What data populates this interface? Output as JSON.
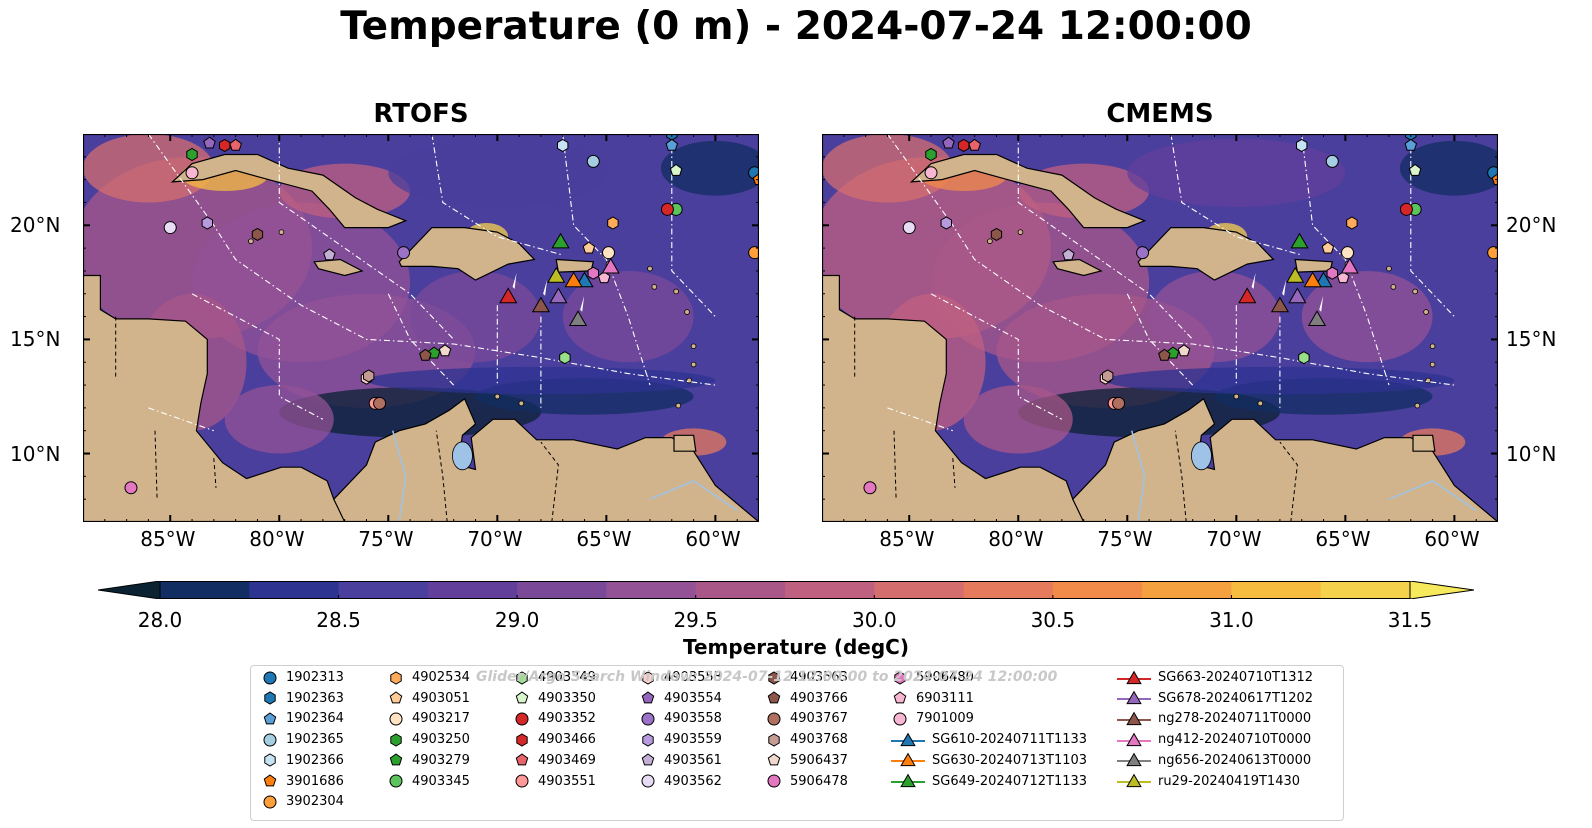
{
  "title": "Temperature (0 m) - 2024-07-24 12:00:00",
  "panels": [
    "RTOFS",
    "CMEMS"
  ],
  "map_extent": {
    "lon": [
      -89,
      -58
    ],
    "lat": [
      7,
      24
    ]
  },
  "lon_ticks": [
    "85°W",
    "80°W",
    "75°W",
    "70°W",
    "65°W",
    "60°W"
  ],
  "lat_ticks": [
    "20°N",
    "15°N",
    "10°N"
  ],
  "colorbar": {
    "label": "Temperature (degC)",
    "ticks": [
      "28.0",
      "28.5",
      "29.0",
      "29.5",
      "30.0",
      "30.5",
      "31.0",
      "31.5"
    ],
    "colors": [
      "#0b2233",
      "#112d62",
      "#2c3390",
      "#4a3f9c",
      "#613f9b",
      "#7a4a98",
      "#935196",
      "#a85788",
      "#c06080",
      "#d46e6e",
      "#e57a5c",
      "#f28a4a",
      "#f6a13f",
      "#f5bc40",
      "#f5d24c",
      "#f7e95c"
    ]
  },
  "legend": {
    "watermark": "Glider/Argo Search Window: 2024-07-12 12:00:00 to 2024-07-24 12:00:00",
    "columns": [
      [
        {
          "label": "1902313",
          "shape": "circle",
          "color": "#1f77b4"
        },
        {
          "label": "1902363",
          "shape": "hexagon",
          "color": "#1f77b4"
        },
        {
          "label": "1902364",
          "shape": "pentagon",
          "color": "#5aa0d8"
        },
        {
          "label": "1902365",
          "shape": "circle",
          "color": "#a6cee3"
        },
        {
          "label": "1902366",
          "shape": "hexagon",
          "color": "#c6e2f5"
        },
        {
          "label": "3901686",
          "shape": "pentagon",
          "color": "#ff7f0e"
        },
        {
          "label": "3902304",
          "shape": "circle",
          "color": "#ff9f3a"
        }
      ],
      [
        {
          "label": "4902534",
          "shape": "hexagon",
          "color": "#ffab5a"
        },
        {
          "label": "4903051",
          "shape": "pentagon",
          "color": "#ffcc99"
        },
        {
          "label": "4903217",
          "shape": "circle",
          "color": "#ffe3c2"
        },
        {
          "label": "4903250",
          "shape": "hexagon",
          "color": "#2ca02c"
        },
        {
          "label": "4903279",
          "shape": "pentagon",
          "color": "#2ca02c"
        },
        {
          "label": "4903345",
          "shape": "circle",
          "color": "#5cc45c"
        }
      ],
      [
        {
          "label": "4903349",
          "shape": "hexagon",
          "color": "#98df8a"
        },
        {
          "label": "4903350",
          "shape": "pentagon",
          "color": "#d8f5cc"
        },
        {
          "label": "4903352",
          "shape": "circle",
          "color": "#d62728"
        },
        {
          "label": "4903466",
          "shape": "hexagon",
          "color": "#d62728"
        },
        {
          "label": "4903469",
          "shape": "pentagon",
          "color": "#e8636a"
        },
        {
          "label": "4903551",
          "shape": "circle",
          "color": "#ff9896"
        }
      ],
      [
        {
          "label": "4903553",
          "shape": "hexagon",
          "color": "#ffd0cc"
        },
        {
          "label": "4903554",
          "shape": "pentagon",
          "color": "#9467bd"
        },
        {
          "label": "4903558",
          "shape": "circle",
          "color": "#9c72c8"
        },
        {
          "label": "4903559",
          "shape": "hexagon",
          "color": "#b99ade"
        },
        {
          "label": "4903561",
          "shape": "pentagon",
          "color": "#c5b0d5"
        },
        {
          "label": "4903562",
          "shape": "circle",
          "color": "#e8dcf5"
        }
      ],
      [
        {
          "label": "4903563",
          "shape": "hexagon",
          "color": "#8c564b"
        },
        {
          "label": "4903766",
          "shape": "pentagon",
          "color": "#8c564b"
        },
        {
          "label": "4903767",
          "shape": "circle",
          "color": "#b07060"
        },
        {
          "label": "4903768",
          "shape": "hexagon",
          "color": "#c49c94"
        },
        {
          "label": "5906437",
          "shape": "pentagon",
          "color": "#f0d8cc"
        },
        {
          "label": "5906478",
          "shape": "circle",
          "color": "#e377c2"
        }
      ],
      [
        {
          "label": "5906480",
          "shape": "hexagon",
          "color": "#e377c2"
        },
        {
          "label": "6903111",
          "shape": "pentagon",
          "color": "#f7b6d2"
        },
        {
          "label": "7901009",
          "shape": "circle",
          "color": "#f7b6d2"
        },
        {
          "label": "SG610-20240711T1133",
          "shape": "triangle",
          "color": "#1f77b4"
        },
        {
          "label": "SG630-20240713T1103",
          "shape": "triangle",
          "color": "#ff7f0e"
        },
        {
          "label": "SG649-20240712T1133",
          "shape": "triangle",
          "color": "#2ca02c"
        }
      ],
      [
        {
          "label": "SG663-20240710T1312",
          "shape": "triangle",
          "color": "#d62728"
        },
        {
          "label": "SG678-20240617T1202",
          "shape": "triangle",
          "color": "#9467bd"
        },
        {
          "label": "ng278-20240711T0000",
          "shape": "triangle",
          "color": "#8c564b"
        },
        {
          "label": "ng412-20240710T0000",
          "shape": "triangle",
          "color": "#e377c2"
        },
        {
          "label": "ng656-20240613T0000",
          "shape": "triangle",
          "color": "#7f7f7f"
        },
        {
          "label": "ru29-20240419T1430",
          "shape": "triangle",
          "color": "#bcbd22"
        }
      ]
    ]
  }
}
